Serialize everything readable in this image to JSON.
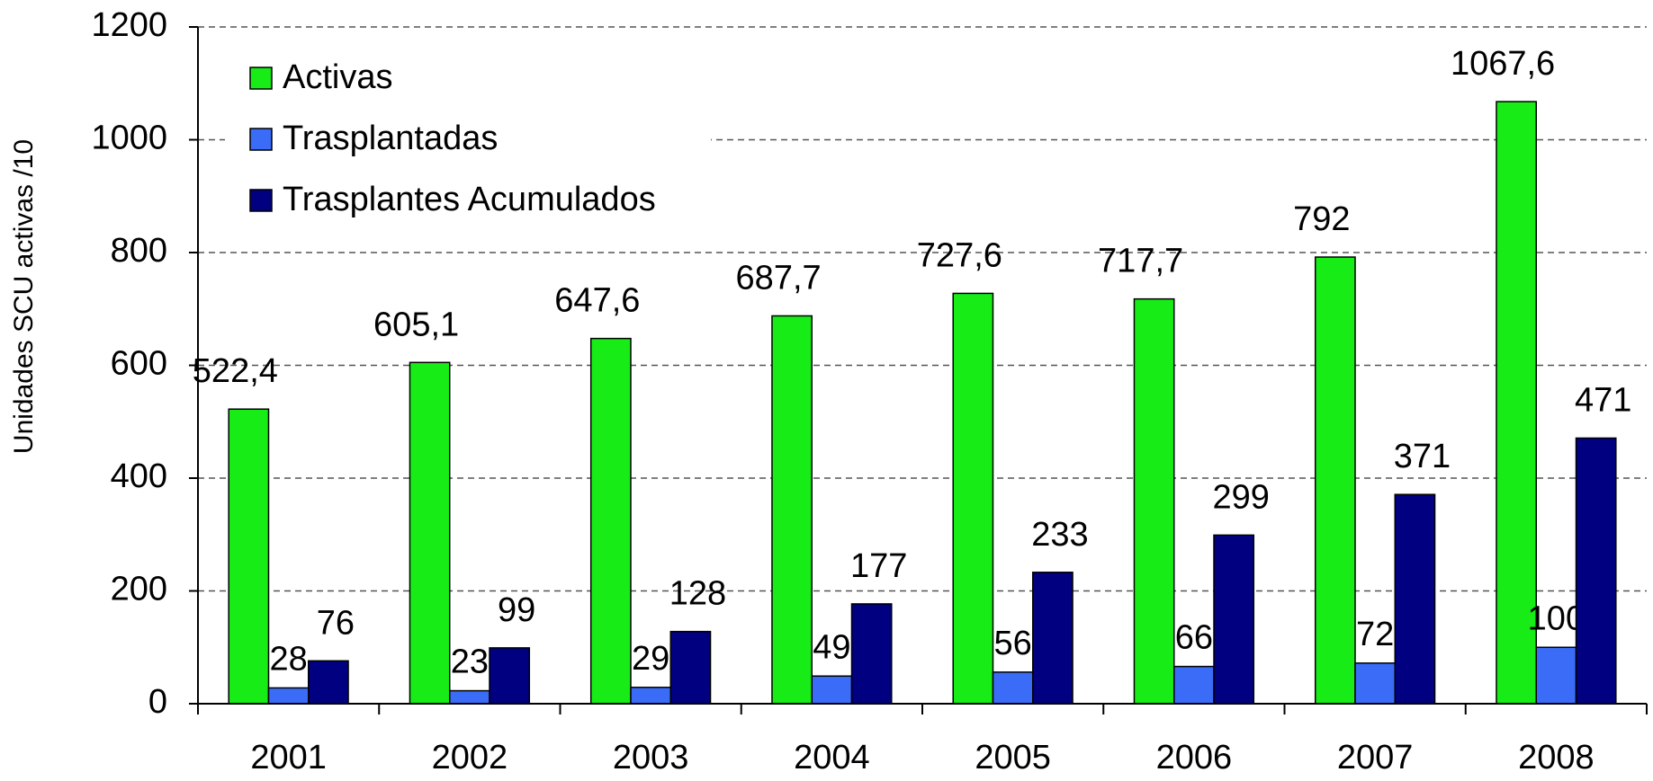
{
  "chart_data": {
    "type": "bar",
    "y_label": "Unidades SCU activas /10",
    "categories": [
      "2001",
      "2002",
      "2003",
      "2004",
      "2005",
      "2006",
      "2007",
      "2008"
    ],
    "series": [
      {
        "name": "Activas",
        "color": "#17ec17",
        "values": [
          522.4,
          605.1,
          647.6,
          687.7,
          727.6,
          717.7,
          792,
          1067.6
        ],
        "value_labels": [
          "522,4",
          "605,1",
          "647,6",
          "687,7",
          "727,6",
          "717,7",
          "792",
          "1067,6"
        ]
      },
      {
        "name": "Trasplantadas",
        "color": "#3b6cf7",
        "values": [
          28,
          23,
          29,
          49,
          56,
          66,
          72,
          100
        ]
      },
      {
        "name": "Trasplantes Acumulados",
        "color": "#000080",
        "values": [
          76,
          99,
          128,
          177,
          233,
          299,
          371,
          471
        ]
      }
    ],
    "ylim": [
      0,
      1200
    ],
    "yticks": [
      0,
      200,
      400,
      600,
      800,
      1000,
      1200
    ],
    "grid": true,
    "legend": "upper left"
  }
}
